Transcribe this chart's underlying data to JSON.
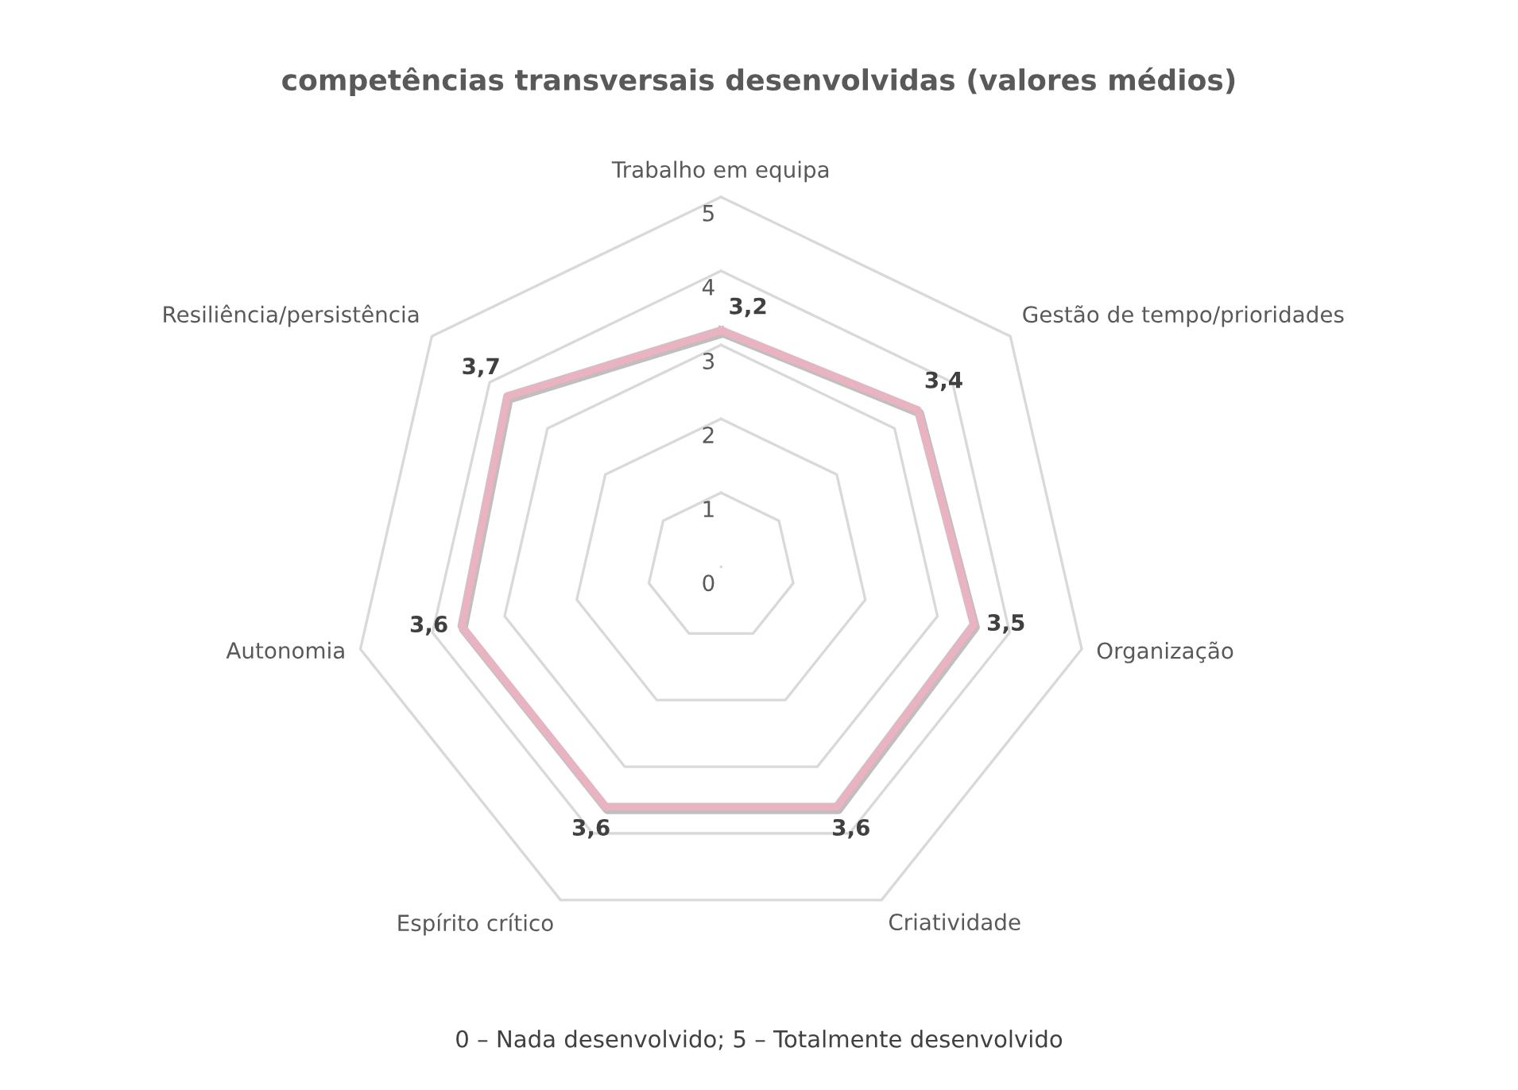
{
  "chart_data": {
    "type": "radar",
    "title": "competências transversais desenvolvidas (valores médios)",
    "categories": [
      "Trabalho em equipa",
      "Gestão de tempo/prioridades",
      "Organização",
      "Criatividade",
      "Espírito crítico",
      "Autonomia",
      "Resiliência/persistência"
    ],
    "series": [
      {
        "color": "#e8b4c2",
        "values": [
          3.2,
          3.4,
          3.5,
          3.6,
          3.6,
          3.6,
          3.7
        ],
        "value_labels": [
          "3,2",
          "3,4",
          "3,5",
          "3,6",
          "3,6",
          "3,6",
          "3,7"
        ]
      }
    ],
    "ylim": [
      0,
      5
    ],
    "yticks": [
      0,
      1,
      2,
      3,
      4,
      5
    ],
    "grid": true,
    "annotations": [
      "0 – Nada desenvolvido; 5 – Totalmente desenvolvido"
    ]
  }
}
